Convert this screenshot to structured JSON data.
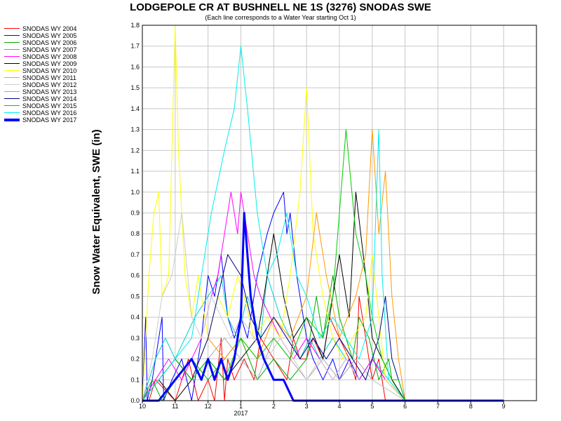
{
  "chart_data": {
    "type": "line",
    "title": "LODGEPOLE CR AT BUSHNELL NE 1S (3276) SNODAS SWE",
    "subtitle": "(Each line corresponds to a Water Year starting Oct 1)",
    "ylabel": "Snow Water Equivalent, SWE (in)",
    "xlabel": "",
    "ylim": [
      0,
      1.8
    ],
    "xlim": [
      0,
      12
    ],
    "yticks": [
      "0.0",
      "0.1",
      "0.2",
      "0.3",
      "0.4",
      "0.5",
      "0.6",
      "0.7",
      "0.8",
      "0.9",
      "1.0",
      "1.1",
      "1.2",
      "1.3",
      "1.4",
      "1.5",
      "1.6",
      "1.7",
      "1.8"
    ],
    "xticks": [
      {
        "value": 0,
        "label": "10"
      },
      {
        "value": 1,
        "label": "11"
      },
      {
        "value": 2,
        "label": "12"
      },
      {
        "value": 3,
        "label": "1"
      },
      {
        "value": 4,
        "label": "2"
      },
      {
        "value": 5,
        "label": "3"
      },
      {
        "value": 6,
        "label": "4"
      },
      {
        "value": 7,
        "label": "5"
      },
      {
        "value": 8,
        "label": "6"
      },
      {
        "value": 9,
        "label": "7"
      },
      {
        "value": 10,
        "label": "8"
      },
      {
        "value": 11,
        "label": "9"
      }
    ],
    "year_label": {
      "value": 3,
      "label": "2017"
    },
    "grid": true,
    "legend_position": "left",
    "series": [
      {
        "name": "SNODAS WY 2004",
        "color": "#ff0000",
        "width": 1,
        "x": [
          0,
          0.2,
          0.4,
          1.0,
          1.4,
          1.7,
          2.0,
          2.2,
          2.4,
          2.5,
          2.6,
          2.8,
          3.1,
          3.4,
          3.6,
          4.0,
          4.4,
          4.6,
          4.8,
          5.0,
          5.2,
          5.5,
          5.7,
          6.0,
          6.3,
          6.5,
          6.6,
          6.8,
          7.0,
          7.2,
          7.4,
          8,
          11
        ],
        "y": [
          0,
          0,
          0.1,
          0,
          0.2,
          0,
          0.1,
          0,
          0.3,
          0,
          0.2,
          0.1,
          0.2,
          0.1,
          0.3,
          0.2,
          0.1,
          0.3,
          0.2,
          0.2,
          0.3,
          0.2,
          0.4,
          0.3,
          0.2,
          0.1,
          0.5,
          0.3,
          0.1,
          0.2,
          0,
          0,
          0
        ]
      },
      {
        "name": "SNODAS WY 2005",
        "color": "#0000ff",
        "width": 1,
        "x": [
          0,
          0.1,
          0.15,
          0.3,
          0.6,
          0.65,
          0.9,
          1.2,
          1.5,
          1.8,
          2.0,
          2.2,
          2.4,
          2.6,
          2.8,
          3.0,
          3.2,
          3.5,
          3.8,
          4.0,
          4.3,
          4.4,
          4.5,
          4.7,
          4.8,
          5.0,
          5.2,
          5.5,
          5.8,
          6.0,
          6.3,
          6.6,
          7.0,
          7.4,
          8,
          11
        ],
        "y": [
          0,
          0.4,
          0,
          0.1,
          0.4,
          0,
          0.1,
          0.2,
          0,
          0.3,
          0.6,
          0.5,
          0.7,
          0.4,
          0.3,
          0.4,
          0.3,
          0.6,
          0.8,
          0.9,
          1.0,
          0.8,
          0.9,
          0.6,
          0.5,
          0.3,
          0.2,
          0.1,
          0.2,
          0.1,
          0.2,
          0.1,
          0.2,
          0.1,
          0,
          0
        ]
      },
      {
        "name": "SNODAS WY 2006",
        "color": "#00aa00",
        "width": 1,
        "x": [
          0,
          0.3,
          0.6,
          1.0,
          1.5,
          2.0,
          2.5,
          3.0,
          3.5,
          4.0,
          4.5,
          5.0,
          5.3,
          5.5,
          5.8,
          6.0,
          6.2,
          6.4,
          6.6,
          6.9,
          7.2,
          7.5,
          7.6,
          8,
          11
        ],
        "y": [
          0,
          0.1,
          0,
          0.1,
          0.2,
          0.1,
          0.2,
          0.3,
          0.1,
          0.2,
          0.1,
          0.2,
          0.5,
          0.3,
          0.6,
          0.4,
          0.3,
          0.2,
          0.4,
          0.3,
          0.1,
          0.2,
          0.1,
          0,
          0
        ]
      },
      {
        "name": "SNODAS WY 2007",
        "color": "#00cccc",
        "width": 1,
        "x": [
          0,
          0.2,
          0.4,
          0.7,
          1.0,
          1.3,
          1.6,
          2.0,
          2.4,
          2.6,
          2.9,
          3.2,
          3.4,
          3.6,
          3.8,
          4.0,
          4.2,
          4.5,
          4.8,
          5.1,
          5.4,
          5.8,
          6.2,
          6.6,
          7.0,
          7.5,
          8,
          11
        ],
        "y": [
          0,
          0.1,
          0.2,
          0.3,
          0.2,
          0.3,
          0.4,
          0.5,
          0.6,
          0.4,
          0.3,
          0.5,
          0.4,
          0.3,
          0.6,
          0.5,
          0.4,
          0.3,
          0.2,
          0.3,
          0.2,
          0.3,
          0.2,
          0.1,
          0.2,
          0.1,
          0,
          0
        ]
      },
      {
        "name": "SNODAS WY 2008",
        "color": "#ff00ff",
        "width": 1,
        "x": [
          0,
          0.4,
          0.8,
          1.2,
          1.5,
          1.8,
          2.1,
          2.3,
          2.5,
          2.7,
          2.9,
          3.0,
          3.2,
          3.4,
          3.6,
          3.9,
          4.2,
          4.6,
          5.0,
          5.4,
          5.8,
          6.2,
          6.6,
          7.0,
          7.4,
          8,
          11
        ],
        "y": [
          0,
          0.1,
          0.2,
          0.1,
          0.2,
          0.3,
          0.5,
          0.6,
          0.8,
          1.0,
          0.8,
          1.0,
          0.8,
          0.6,
          0.5,
          0.4,
          0.3,
          0.2,
          0.3,
          0.2,
          0.1,
          0.2,
          0.1,
          0.2,
          0.1,
          0,
          0
        ]
      },
      {
        "name": "SNODAS WY 2009",
        "color": "#000000",
        "width": 1,
        "x": [
          0,
          0.5,
          1.0,
          1.5,
          2.0,
          2.5,
          3.0,
          3.5,
          3.8,
          4.0,
          4.3,
          4.6,
          5.0,
          5.5,
          5.8,
          6.0,
          6.3,
          6.5,
          6.8,
          7.0,
          7.3,
          7.6,
          8,
          11
        ],
        "y": [
          0,
          0.1,
          0,
          0.1,
          0.2,
          0.1,
          0.2,
          0.3,
          0.6,
          0.8,
          0.5,
          0.3,
          0.4,
          0.2,
          0.5,
          0.7,
          0.4,
          1.0,
          0.6,
          0.3,
          0.2,
          0.1,
          0,
          0
        ]
      },
      {
        "name": "SNODAS WY 2010",
        "color": "#ffff00",
        "width": 1,
        "x": [
          0,
          0.1,
          0.2,
          0.35,
          0.5,
          0.6,
          0.8,
          0.9,
          1.0,
          1.1,
          1.3,
          1.5,
          1.7,
          2.0,
          2.3,
          2.6,
          2.9,
          3.1,
          3.4,
          3.8,
          4.2,
          4.5,
          4.8,
          5.0,
          5.2,
          5.5,
          5.8,
          6.1,
          6.4,
          6.8,
          7.0,
          7.2,
          7.4,
          8,
          11
        ],
        "y": [
          0,
          0.3,
          0.6,
          0.9,
          1.0,
          0.5,
          0.6,
          1.2,
          1.8,
          1.2,
          0.6,
          0.4,
          0.6,
          0.3,
          0.5,
          0.4,
          0.6,
          0.5,
          0.3,
          0.4,
          0.3,
          0.6,
          1.0,
          1.5,
          0.8,
          0.5,
          0.3,
          0.2,
          0.3,
          0.4,
          0.7,
          0.4,
          0.1,
          0,
          0
        ]
      },
      {
        "name": "SNODAS WY 2011",
        "color": "#aaaaaa",
        "width": 1,
        "x": [
          0,
          0.5,
          1.0,
          1.5,
          2.0,
          2.5,
          3.0,
          3.5,
          4.0,
          4.5,
          5.0,
          5.5,
          6.0,
          6.5,
          7.0,
          8,
          11
        ],
        "y": [
          0,
          0.1,
          0.2,
          0.1,
          0.2,
          0.3,
          0.2,
          0.1,
          0.3,
          0.2,
          0.1,
          0.2,
          0.1,
          0.2,
          0.1,
          0,
          0
        ]
      },
      {
        "name": "SNODAS WY 2012",
        "color": "#cccccc",
        "width": 1,
        "x": [
          0,
          0.3,
          0.6,
          0.9,
          1.2,
          1.5,
          1.8,
          2.1,
          2.4,
          2.7,
          3.0,
          3.4,
          3.8,
          4.2,
          4.6,
          5.0,
          5.4,
          5.8,
          6.2,
          6.6,
          7.0,
          8,
          11
        ],
        "y": [
          0,
          0.2,
          0.5,
          0.6,
          0.9,
          0.4,
          0.3,
          0.5,
          0.4,
          0.3,
          0.4,
          0.3,
          0.2,
          0.3,
          0.2,
          0.1,
          0.2,
          0.1,
          0.2,
          0.1,
          0.1,
          0,
          0
        ]
      },
      {
        "name": "SNODAS WY 2013",
        "color": "#ff9900",
        "width": 1,
        "x": [
          0,
          0.5,
          1.0,
          1.5,
          2.0,
          2.5,
          3.0,
          3.5,
          4.0,
          4.5,
          5.0,
          5.3,
          5.6,
          6.0,
          6.5,
          6.8,
          7.0,
          7.2,
          7.4,
          7.6,
          7.8,
          8,
          11
        ],
        "y": [
          0,
          0.1,
          0.2,
          0.1,
          0.3,
          0.2,
          0.3,
          0.2,
          0.4,
          0.3,
          0.5,
          0.9,
          0.6,
          0.3,
          0.5,
          0.7,
          1.3,
          0.8,
          1.1,
          0.5,
          0.2,
          0,
          0
        ]
      },
      {
        "name": "SNODAS WY 2014",
        "color": "#000088",
        "width": 1,
        "x": [
          0,
          0.5,
          1.0,
          1.5,
          2.0,
          2.3,
          2.6,
          3.0,
          3.3,
          3.6,
          4.0,
          4.4,
          4.8,
          5.2,
          5.6,
          6.0,
          6.4,
          6.8,
          7.0,
          7.2,
          7.4,
          7.6,
          8,
          11
        ],
        "y": [
          0,
          0.1,
          0.2,
          0.1,
          0.3,
          0.5,
          0.7,
          0.6,
          0.4,
          0.3,
          0.4,
          0.3,
          0.2,
          0.3,
          0.2,
          0.3,
          0.2,
          0.1,
          0.2,
          0.3,
          0.5,
          0.2,
          0,
          0
        ]
      },
      {
        "name": "SNODAS WY 2015",
        "color": "#00cc00",
        "width": 1,
        "x": [
          0,
          0.5,
          1.0,
          1.5,
          2.0,
          2.5,
          3.0,
          3.5,
          4.0,
          4.5,
          5.0,
          5.5,
          5.8,
          6.0,
          6.2,
          6.5,
          6.8,
          7.0,
          7.3,
          7.6,
          7.8,
          8,
          11
        ],
        "y": [
          0,
          0.1,
          0.2,
          0.1,
          0.2,
          0.1,
          0.3,
          0.2,
          0.3,
          0.2,
          0.4,
          0.3,
          0.5,
          0.9,
          1.3,
          0.8,
          0.6,
          0.4,
          0.2,
          0.1,
          0.1,
          0,
          0
        ]
      },
      {
        "name": "SNODAS WY 2016",
        "color": "#00eeee",
        "width": 1,
        "x": [
          0,
          0.5,
          1.0,
          1.5,
          1.8,
          2.1,
          2.5,
          2.8,
          3.0,
          3.2,
          3.5,
          3.8,
          4.1,
          4.4,
          4.7,
          5.0,
          5.4,
          5.8,
          6.2,
          6.6,
          7.0,
          7.2,
          7.3,
          7.5,
          8,
          11
        ],
        "y": [
          0,
          0.1,
          0.2,
          0.3,
          0.6,
          0.9,
          1.2,
          1.4,
          1.7,
          1.4,
          0.9,
          0.6,
          0.7,
          0.9,
          0.6,
          0.5,
          0.3,
          0.4,
          0.3,
          0.2,
          0.4,
          1.3,
          0.6,
          0.1,
          0,
          0
        ]
      },
      {
        "name": "SNODAS WY 2017",
        "color": "#0000ff",
        "width": 3,
        "x": [
          0,
          0.5,
          1.0,
          1.5,
          1.8,
          2.0,
          2.2,
          2.4,
          2.6,
          2.8,
          3.0,
          3.1,
          3.3,
          3.5,
          3.7,
          4.0,
          4.3,
          4.6,
          5.0,
          5.4,
          5.8,
          6.2,
          6.6,
          7.0,
          7.4,
          8,
          11
        ],
        "y": [
          0,
          0,
          0.1,
          0.2,
          0.1,
          0.2,
          0.1,
          0.2,
          0.1,
          0.2,
          0.4,
          0.9,
          0.5,
          0.3,
          0.2,
          0.1,
          0.1,
          0,
          0,
          0,
          0,
          0,
          0,
          0,
          0,
          0,
          0
        ]
      }
    ]
  }
}
